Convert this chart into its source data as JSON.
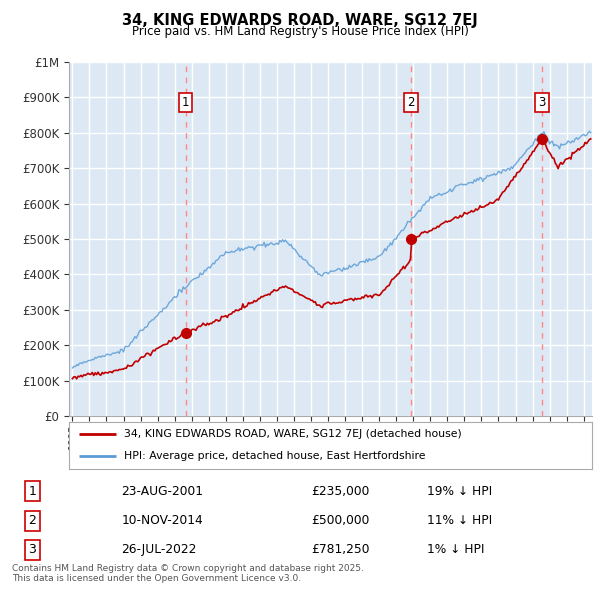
{
  "title": "34, KING EDWARDS ROAD, WARE, SG12 7EJ",
  "subtitle": "Price paid vs. HM Land Registry's House Price Index (HPI)",
  "ylabel_ticks": [
    "£0",
    "£100K",
    "£200K",
    "£300K",
    "£400K",
    "£500K",
    "£600K",
    "£700K",
    "£800K",
    "£900K",
    "£1M"
  ],
  "ytick_vals": [
    0,
    100000,
    200000,
    300000,
    400000,
    500000,
    600000,
    700000,
    800000,
    900000,
    1000000
  ],
  "ylim": [
    0,
    1000000
  ],
  "xlim_start": 1994.8,
  "xlim_end": 2025.5,
  "plot_bg_color": "#dce9f5",
  "grid_color": "#ffffff",
  "sale_dates": [
    2001.644,
    2014.861,
    2022.556
  ],
  "sale_prices": [
    235000,
    500000,
    781250
  ],
  "sale_labels": [
    "1",
    "2",
    "3"
  ],
  "vline_color": "#ff8888",
  "hpi_line_color": "#5b9bd5",
  "price_line_color": "#c00000",
  "legend_sale": "34, KING EDWARDS ROAD, WARE, SG12 7EJ (detached house)",
  "legend_hpi": "HPI: Average price, detached house, East Hertfordshire",
  "table_entries": [
    {
      "num": "1",
      "date": "23-AUG-2001",
      "price": "£235,000",
      "hpi": "19% ↓ HPI"
    },
    {
      "num": "2",
      "date": "10-NOV-2014",
      "price": "£500,000",
      "hpi": "11% ↓ HPI"
    },
    {
      "num": "3",
      "date": "26-JUL-2022",
      "price": "£781,250",
      "hpi": "1% ↓ HPI"
    }
  ],
  "footer": "Contains HM Land Registry data © Crown copyright and database right 2025.\nThis data is licensed under the Open Government Licence v3.0."
}
